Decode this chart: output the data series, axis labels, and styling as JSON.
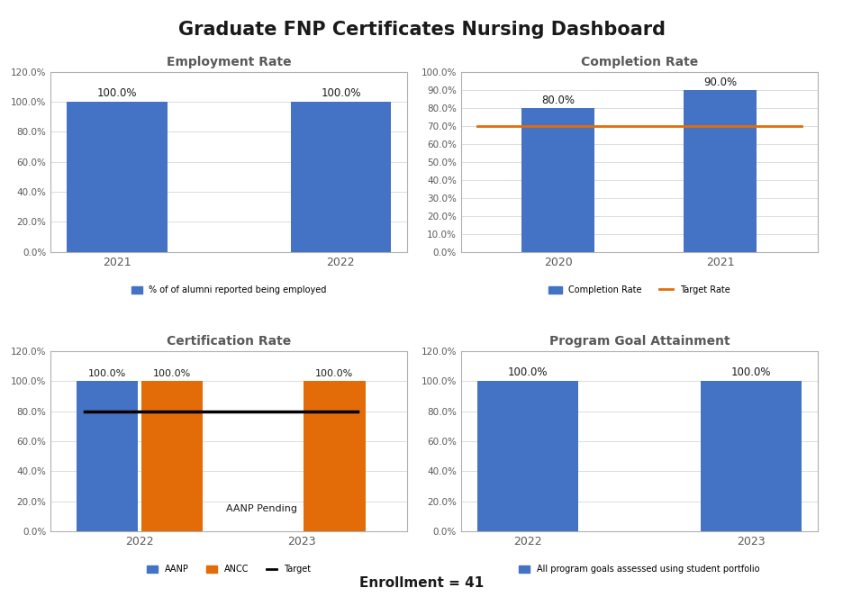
{
  "title": "Graduate FNP Certificates Nursing Dashboard",
  "title_fontsize": 15,
  "enrollment_text": "Enrollment = 41",
  "background_color": "#ffffff",
  "employment": {
    "title": "Employment Rate",
    "years": [
      "2021",
      "2022"
    ],
    "values": [
      100.0,
      100.0
    ],
    "bar_color": "#4472C4",
    "ylim": [
      0,
      120
    ],
    "yticks": [
      0,
      20,
      40,
      60,
      80,
      100,
      120
    ],
    "legend_label": "% of of alumni reported being employed",
    "legend_color": "#4472C4"
  },
  "completion": {
    "title": "Completion Rate",
    "years": [
      "2020",
      "2021"
    ],
    "values": [
      80.0,
      90.0
    ],
    "bar_color": "#4472C4",
    "target_value": 70.0,
    "target_color": "#E36C09",
    "ylim": [
      0,
      100
    ],
    "yticks": [
      0,
      10,
      20,
      30,
      40,
      50,
      60,
      70,
      80,
      90,
      100
    ],
    "legend_bar_label": "Completion Rate",
    "legend_line_label": "Target Rate",
    "legend_bar_color": "#4472C4",
    "legend_line_color": "#E36C09"
  },
  "certification": {
    "title": "Certification Rate",
    "years": [
      "2022",
      "2023"
    ],
    "aanp_values": [
      100.0,
      null
    ],
    "ancc_values": [
      100.0,
      100.0
    ],
    "aanp_color": "#4472C4",
    "ancc_color": "#E36C09",
    "target_value": 80.0,
    "target_color": "#000000",
    "pending_text": "AANP Pending",
    "ylim": [
      0,
      120
    ],
    "yticks": [
      0,
      20,
      40,
      60,
      80,
      100,
      120
    ],
    "legend_aanp": "AANP",
    "legend_ancc": "ANCC",
    "legend_target": "Target"
  },
  "program_goal": {
    "title": "Program Goal Attainment",
    "years": [
      "2022",
      "2023"
    ],
    "values": [
      100.0,
      100.0
    ],
    "bar_color": "#4472C4",
    "ylim": [
      0,
      120
    ],
    "yticks": [
      0,
      20,
      40,
      60,
      80,
      100,
      120
    ],
    "legend_label": "All program goals assessed using student portfolio",
    "legend_color": "#4472C4"
  }
}
